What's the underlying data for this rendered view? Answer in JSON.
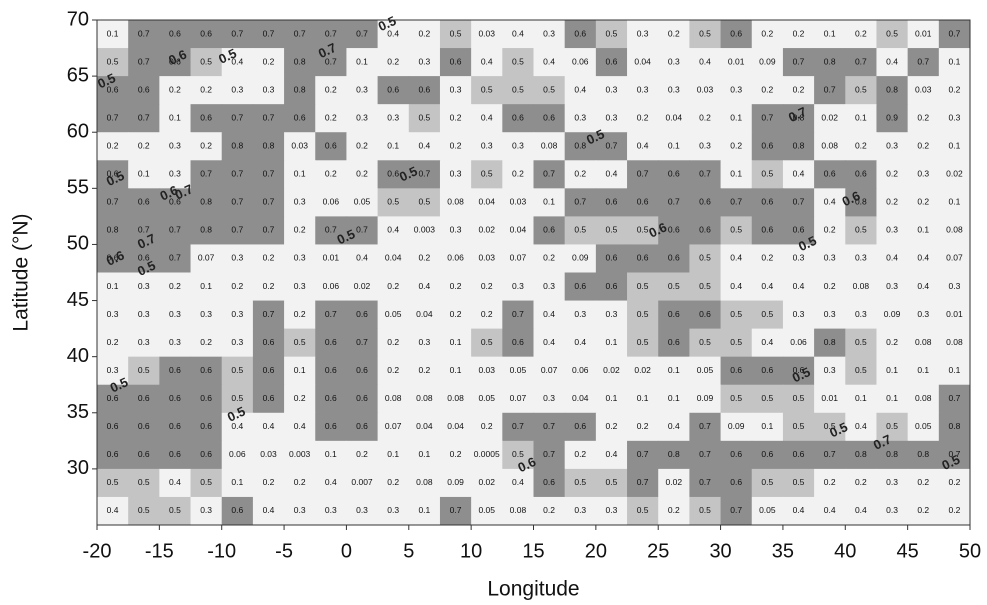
{
  "chart_data": {
    "type": "heatmap",
    "x_label": "Longitude",
    "y_label": "Latitude (°N)",
    "xlim": [
      -20,
      50
    ],
    "ylim": [
      25,
      70
    ],
    "xticks": [
      -20,
      -15,
      -10,
      -5,
      0,
      5,
      10,
      15,
      20,
      25,
      30,
      35,
      40,
      45,
      50
    ],
    "yticks": [
      30,
      35,
      40,
      45,
      50,
      55,
      60,
      65,
      70
    ],
    "x": [
      -18.75,
      -16.25,
      -13.75,
      -11.25,
      -8.75,
      -6.25,
      -3.75,
      -1.25,
      1.25,
      3.75,
      6.25,
      8.75,
      11.25,
      13.75,
      16.25,
      18.75,
      21.25,
      23.75,
      26.25,
      28.75,
      31.25,
      33.75,
      36.25,
      38.75,
      41.25,
      43.75,
      46.25,
      48.75
    ],
    "y": [
      68.75,
      66.25,
      63.75,
      61.25,
      58.75,
      56.25,
      53.75,
      51.25,
      48.75,
      46.25,
      43.75,
      41.25,
      38.75,
      36.25,
      33.75,
      31.25,
      28.75,
      26.25
    ],
    "levels": [
      0.5,
      0.6
    ],
    "colors": [
      "#f2f2f2",
      "#c4c4c4",
      "#8e8e8e"
    ],
    "values": [
      [
        0.1,
        0.7,
        0.6,
        0.6,
        0.7,
        0.7,
        0.7,
        0.7,
        0.7,
        0.4,
        0.2,
        0.5,
        0.03,
        0.4,
        0.3,
        0.6,
        0.5,
        0.3,
        0.2,
        0.5,
        0.6,
        0.2,
        0.2,
        0.1,
        0.2,
        0.5,
        0.01,
        0.7
      ],
      [
        0.5,
        0.7,
        0.6,
        0.5,
        0.4,
        0.2,
        0.8,
        0.7,
        0.1,
        0.2,
        0.3,
        0.6,
        0.4,
        0.5,
        0.4,
        0.06,
        0.6,
        0.04,
        0.3,
        0.4,
        0.01,
        0.09,
        0.7,
        0.8,
        0.7,
        0.4,
        0.7,
        0.1
      ],
      [
        0.6,
        0.6,
        0.2,
        0.2,
        0.3,
        0.3,
        0.8,
        0.2,
        0.3,
        0.6,
        0.6,
        0.3,
        0.5,
        0.5,
        0.5,
        0.4,
        0.3,
        0.3,
        0.3,
        0.03,
        0.3,
        0.2,
        0.2,
        0.7,
        0.5,
        0.8,
        0.03,
        0.2
      ],
      [
        0.7,
        0.7,
        0.1,
        0.6,
        0.7,
        0.7,
        0.6,
        0.2,
        0.3,
        0.3,
        0.5,
        0.2,
        0.4,
        0.6,
        0.6,
        0.3,
        0.3,
        0.2,
        0.04,
        0.2,
        0.1,
        0.7,
        0.8,
        0.02,
        0.1,
        0.9,
        0.2,
        0.3
      ],
      [
        0.2,
        0.2,
        0.3,
        0.2,
        0.8,
        0.8,
        0.03,
        0.6,
        0.2,
        0.1,
        0.4,
        0.2,
        0.3,
        0.3,
        0.08,
        0.8,
        0.7,
        0.4,
        0.1,
        0.3,
        0.2,
        0.6,
        0.8,
        0.08,
        0.2,
        0.3,
        0.2,
        0.1
      ],
      [
        0.6,
        0.1,
        0.3,
        0.7,
        0.7,
        0.7,
        0.1,
        0.2,
        0.2,
        0.6,
        0.7,
        0.3,
        0.5,
        0.2,
        0.7,
        0.2,
        0.4,
        0.7,
        0.6,
        0.7,
        0.1,
        0.5,
        0.4,
        0.6,
        0.6,
        0.2,
        0.3,
        0.02
      ],
      [
        0.7,
        0.6,
        0.6,
        0.8,
        0.7,
        0.7,
        0.3,
        0.06,
        0.05,
        0.5,
        0.5,
        0.08,
        0.04,
        0.03,
        0.1,
        0.7,
        0.6,
        0.6,
        0.7,
        0.6,
        0.7,
        0.6,
        0.7,
        0.4,
        0.8,
        0.2,
        0.2,
        0.1
      ],
      [
        0.8,
        0.7,
        0.7,
        0.8,
        0.7,
        0.7,
        0.2,
        0.7,
        0.7,
        0.4,
        0.003,
        0.3,
        0.02,
        0.04,
        0.6,
        0.5,
        0.5,
        0.5,
        0.6,
        0.6,
        0.5,
        0.6,
        0.6,
        0.2,
        0.5,
        0.3,
        0.1,
        0.08
      ],
      [
        0.6,
        0.6,
        0.7,
        0.07,
        0.3,
        0.2,
        0.3,
        0.01,
        0.4,
        0.04,
        0.2,
        0.06,
        0.03,
        0.07,
        0.2,
        0.09,
        0.6,
        0.6,
        0.6,
        0.5,
        0.4,
        0.2,
        0.3,
        0.3,
        0.3,
        0.4,
        0.4,
        0.07
      ],
      [
        0.1,
        0.3,
        0.2,
        0.1,
        0.2,
        0.2,
        0.3,
        0.06,
        0.02,
        0.2,
        0.4,
        0.2,
        0.2,
        0.3,
        0.3,
        0.6,
        0.6,
        0.5,
        0.5,
        0.5,
        0.4,
        0.4,
        0.4,
        0.2,
        0.08,
        0.3,
        0.4,
        0.3
      ],
      [
        0.3,
        0.3,
        0.3,
        0.3,
        0.3,
        0.7,
        0.2,
        0.7,
        0.6,
        0.05,
        0.04,
        0.2,
        0.2,
        0.7,
        0.4,
        0.3,
        0.3,
        0.5,
        0.6,
        0.6,
        0.5,
        0.5,
        0.3,
        0.3,
        0.3,
        0.09,
        0.3,
        0.01
      ],
      [
        0.2,
        0.3,
        0.3,
        0.2,
        0.3,
        0.6,
        0.5,
        0.6,
        0.7,
        0.2,
        0.3,
        0.1,
        0.5,
        0.6,
        0.4,
        0.4,
        0.1,
        0.5,
        0.6,
        0.5,
        0.5,
        0.4,
        0.06,
        0.8,
        0.5,
        0.2,
        0.08,
        0.08
      ],
      [
        0.3,
        0.5,
        0.6,
        0.6,
        0.5,
        0.6,
        0.1,
        0.6,
        0.6,
        0.2,
        0.2,
        0.1,
        0.03,
        0.05,
        0.07,
        0.06,
        0.02,
        0.02,
        0.1,
        0.05,
        0.6,
        0.6,
        0.6,
        0.3,
        0.5,
        0.1,
        0.1,
        0.1
      ],
      [
        0.6,
        0.6,
        0.6,
        0.6,
        0.5,
        0.6,
        0.2,
        0.6,
        0.6,
        0.08,
        0.08,
        0.08,
        0.05,
        0.07,
        0.3,
        0.04,
        0.1,
        0.1,
        0.1,
        0.09,
        0.5,
        0.5,
        0.5,
        0.01,
        0.1,
        0.1,
        0.08,
        0.7
      ],
      [
        0.6,
        0.6,
        0.6,
        0.6,
        0.4,
        0.4,
        0.4,
        0.6,
        0.6,
        0.07,
        0.04,
        0.04,
        0.2,
        0.7,
        0.7,
        0.6,
        0.2,
        0.2,
        0.4,
        0.7,
        0.09,
        0.1,
        0.5,
        0.5,
        0.4,
        0.5,
        0.05,
        0.8
      ],
      [
        0.6,
        0.6,
        0.6,
        0.6,
        0.06,
        0.03,
        0.003,
        0.1,
        0.2,
        0.1,
        0.1,
        0.2,
        0.0005,
        0.5,
        0.7,
        0.2,
        0.4,
        0.7,
        0.8,
        0.7,
        0.6,
        0.6,
        0.6,
        0.7,
        0.8,
        0.8,
        0.8,
        0.7
      ],
      [
        0.5,
        0.5,
        0.4,
        0.5,
        0.1,
        0.2,
        0.2,
        0.4,
        0.007,
        0.2,
        0.08,
        0.09,
        0.02,
        0.4,
        0.6,
        0.5,
        0.5,
        0.7,
        0.02,
        0.7,
        0.6,
        0.5,
        0.5,
        0.2,
        0.2,
        0.3,
        0.2,
        0.2
      ],
      [
        0.4,
        0.5,
        0.5,
        0.3,
        0.6,
        0.4,
        0.3,
        0.3,
        0.3,
        0.3,
        0.1,
        0.7,
        0.05,
        0.08,
        0.2,
        0.3,
        0.3,
        0.5,
        0.2,
        0.5,
        0.7,
        0.05,
        0.4,
        0.4,
        0.4,
        0.3,
        0.2,
        0.2
      ]
    ],
    "contour_labels": [
      {
        "text": "0.5",
        "x": -19.2,
        "y": 64.5
      },
      {
        "text": "0.6",
        "x": -13.5,
        "y": 66.6
      },
      {
        "text": "0.5",
        "x": -9.5,
        "y": 66.7
      },
      {
        "text": "0.7",
        "x": -1.5,
        "y": 67.2
      },
      {
        "text": "0.5",
        "x": 3.3,
        "y": 69.6
      },
      {
        "text": "0.5",
        "x": -18.5,
        "y": 55.8
      },
      {
        "text": "0.6",
        "x": -14.2,
        "y": 54.5
      },
      {
        "text": "0.7",
        "x": -13,
        "y": 54.6
      },
      {
        "text": "0.7",
        "x": -16,
        "y": 50.2
      },
      {
        "text": "0.6",
        "x": -18.5,
        "y": 48.7
      },
      {
        "text": "0.5",
        "x": -16,
        "y": 47.8
      },
      {
        "text": "0.5",
        "x": 0,
        "y": 50.6
      },
      {
        "text": "0.5",
        "x": 5,
        "y": 56.2
      },
      {
        "text": "0.5",
        "x": 20,
        "y": 59.5
      },
      {
        "text": "0.6",
        "x": 25,
        "y": 51.2
      },
      {
        "text": "0.5",
        "x": 37,
        "y": 50
      },
      {
        "text": "0.7",
        "x": 36.2,
        "y": 61.5
      },
      {
        "text": "0.6",
        "x": 40.5,
        "y": 54
      },
      {
        "text": "0.5",
        "x": -18.2,
        "y": 37.4
      },
      {
        "text": "0.5",
        "x": -8.8,
        "y": 34.8
      },
      {
        "text": "0.6",
        "x": 14.5,
        "y": 30.3
      },
      {
        "text": "0.5",
        "x": 36.5,
        "y": 38.3
      },
      {
        "text": "0.5",
        "x": 39.5,
        "y": 33.4
      },
      {
        "text": "0.7",
        "x": 43,
        "y": 32.3
      },
      {
        "text": "0.5",
        "x": 48.5,
        "y": 30.5
      }
    ]
  }
}
